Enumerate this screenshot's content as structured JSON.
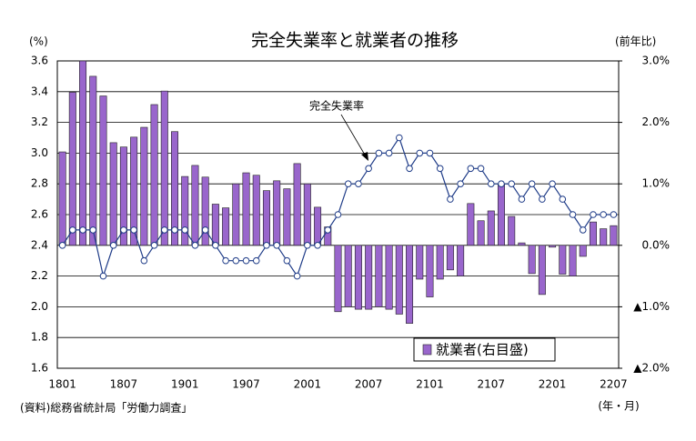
{
  "chart_data": {
    "type": "bar-line",
    "title": "完全失業率と就業者の推移",
    "y_label": "(%)",
    "y2_label": "(前年比)",
    "x_label": "(年・月)",
    "source": "(資料)総務省統計局「労働力調査」",
    "categories": [
      "1801",
      null,
      null,
      null,
      null,
      null,
      "1807",
      null,
      null,
      null,
      null,
      null,
      "1901",
      null,
      null,
      null,
      null,
      null,
      "1907",
      null,
      null,
      null,
      null,
      null,
      "2001",
      null,
      null,
      null,
      null,
      null,
      "2007",
      null,
      null,
      null,
      null,
      null,
      "2101",
      null,
      null,
      null,
      null,
      null,
      "2107",
      null,
      null,
      null,
      null,
      null,
      "2201",
      null,
      null,
      null,
      null,
      null,
      "2207"
    ],
    "series": [
      {
        "name": "就業者(右目盛)",
        "type": "bar",
        "axis": "y2",
        "color": "#9966cc",
        "values": [
          1.52,
          2.49,
          3.0,
          2.75,
          2.43,
          1.67,
          1.6,
          1.76,
          1.92,
          2.29,
          2.51,
          1.85,
          1.12,
          1.3,
          1.11,
          0.67,
          0.61,
          1.0,
          1.18,
          1.14,
          0.89,
          1.05,
          0.92,
          1.33,
          1.0,
          0.62,
          0.3,
          -1.08,
          -1.0,
          -1.04,
          -1.04,
          -1.0,
          -1.04,
          -1.12,
          -1.27,
          -0.55,
          -0.84,
          -0.55,
          -0.4,
          -0.5,
          0.68,
          0.4,
          0.56,
          1.0,
          0.47,
          0.04,
          -0.46,
          -0.8,
          -0.03,
          -0.47,
          -0.5,
          -0.18,
          0.38,
          0.27,
          0.32
        ]
      },
      {
        "name": "完全失業率",
        "type": "line",
        "color": "#1f3c88",
        "values": [
          2.4,
          2.5,
          2.5,
          2.5,
          2.2,
          2.4,
          2.5,
          2.5,
          2.3,
          2.4,
          2.5,
          2.5,
          2.5,
          2.4,
          2.5,
          2.4,
          2.3,
          2.3,
          2.3,
          2.3,
          2.4,
          2.4,
          2.3,
          2.2,
          2.4,
          2.4,
          2.5,
          2.6,
          2.8,
          2.8,
          2.9,
          3.0,
          3.0,
          3.1,
          2.9,
          3.0,
          3.0,
          2.9,
          2.7,
          2.8,
          2.9,
          2.9,
          2.8,
          2.8,
          2.8,
          2.7,
          2.8,
          2.7,
          2.8,
          2.7,
          2.6,
          2.5,
          2.6,
          2.6,
          2.6
        ]
      }
    ],
    "ylim": [
      1.6,
      3.6
    ],
    "yticks": [
      1.6,
      1.8,
      {
        "value": 2,
        "label": "2.0"
      },
      2.2,
      2.4,
      2.6,
      2.8,
      {
        "value": 3,
        "label": "3.0"
      },
      3.2,
      3.4,
      3.6
    ],
    "y2lim": [
      -2,
      3
    ],
    "y2ticks": [
      {
        "value": -2,
        "label": "▲2.0%"
      },
      {
        "value": -1,
        "label": "▲1.0%"
      },
      {
        "value": 0,
        "label": "0.0%"
      },
      {
        "value": 1,
        "label": "1.0%"
      },
      {
        "value": 2,
        "label": "2.0%"
      },
      {
        "value": 3,
        "label": "3.0%"
      }
    ],
    "grid": true,
    "legend": "lower-right"
  }
}
